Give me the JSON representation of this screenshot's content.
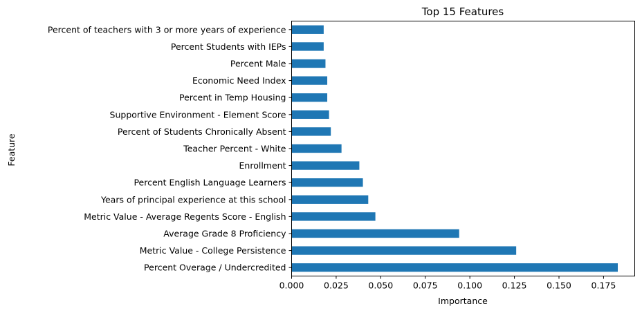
{
  "chart_data": {
    "type": "bar",
    "orientation": "horizontal",
    "title": "Top 15 Features",
    "xlabel": "Importance",
    "ylabel": "Feature",
    "xlim": [
      0,
      0.1925
    ],
    "xticks": [
      "0.000",
      "0.025",
      "0.050",
      "0.075",
      "0.100",
      "0.125",
      "0.150",
      "0.175"
    ],
    "grid": false,
    "bar_color": "#1f77b4",
    "categories": [
      "Percent Overage / Undercredited",
      "Metric Value - College Persistence",
      "Average Grade 8 Proficiency",
      "Metric Value - Average Regents Score - English",
      "Years of principal experience at this school",
      "Percent English Language Learners",
      "Enrollment",
      "Teacher Percent - White",
      "Percent of Students Chronically Absent",
      "Supportive Environment - Element Score",
      "Percent in Temp Housing",
      "Economic Need Index",
      "Percent Male",
      "Percent Students with IEPs",
      "Percent of teachers with 3 or more years of experience"
    ],
    "values": [
      0.183,
      0.126,
      0.094,
      0.047,
      0.043,
      0.04,
      0.038,
      0.028,
      0.022,
      0.021,
      0.02,
      0.02,
      0.019,
      0.018,
      0.018
    ]
  }
}
